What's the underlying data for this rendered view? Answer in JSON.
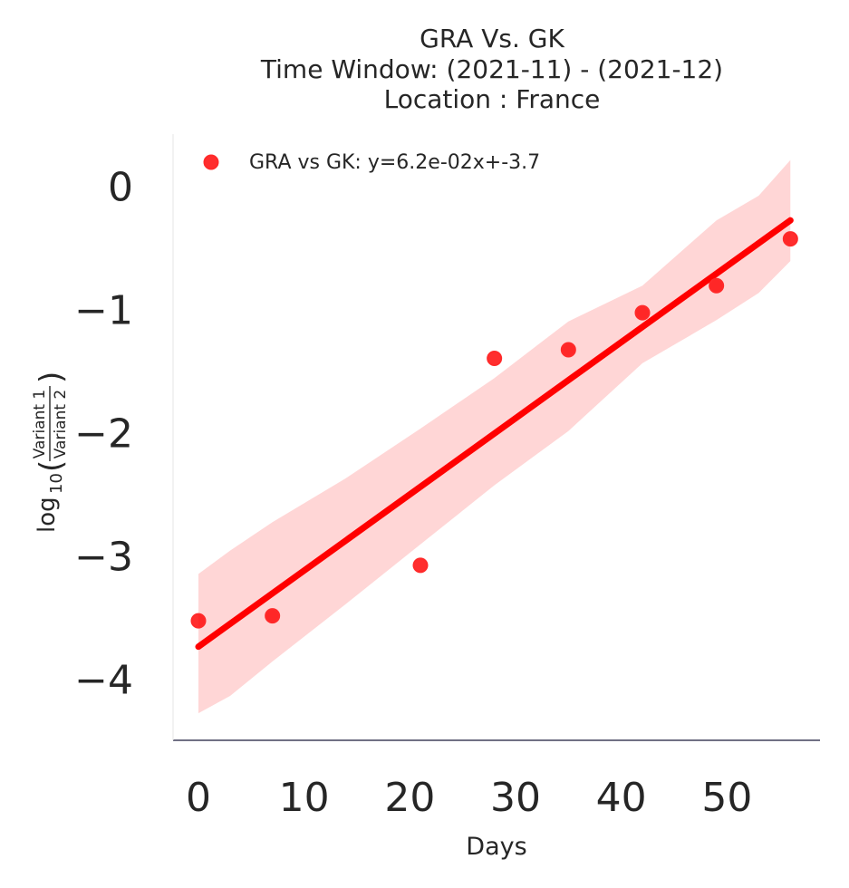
{
  "chart_data": {
    "type": "scatter",
    "title_lines": [
      "GRA Vs. GK",
      "Time Window: (2021-11) - (2021-12)",
      "Location : France"
    ],
    "xlabel": "Days",
    "ylabel": {
      "prefix": "log",
      "subscript": "10",
      "numerator": "Variant 1",
      "denominator": "Variant 2"
    },
    "xlim": [
      -2.4,
      58.8
    ],
    "ylim": [
      -4.49,
      0.43
    ],
    "xticks": [
      0,
      10,
      20,
      30,
      40,
      50
    ],
    "yticks": [
      0,
      -1,
      -2,
      -3,
      -4
    ],
    "xtick_labels": [
      "0",
      "10",
      "20",
      "30",
      "40",
      "50"
    ],
    "ytick_labels": [
      "0",
      "−1",
      "−2",
      "−3",
      "−4"
    ],
    "grid": false,
    "legend_position": "upper-left",
    "series": [
      {
        "name": "GRA vs GK: y=6.2e-02x+-3.7",
        "color": "#ff0000",
        "points": [
          {
            "x": 0,
            "y": -3.52
          },
          {
            "x": 7,
            "y": -3.48
          },
          {
            "x": 21,
            "y": -3.07
          },
          {
            "x": 28,
            "y": -1.39
          },
          {
            "x": 35,
            "y": -1.32
          },
          {
            "x": 42,
            "y": -1.02
          },
          {
            "x": 49,
            "y": -0.8
          },
          {
            "x": 56,
            "y": -0.42
          }
        ],
        "fit": {
          "x": [
            0,
            56
          ],
          "y": [
            -3.73,
            -0.27
          ]
        },
        "ci_band": {
          "x": [
            0,
            3,
            7,
            14,
            21,
            28,
            35,
            42,
            49,
            53,
            56
          ],
          "upper": [
            -3.14,
            -2.95,
            -2.72,
            -2.36,
            -1.96,
            -1.55,
            -1.09,
            -0.8,
            -0.27,
            -0.07,
            0.22
          ],
          "lower": [
            -4.27,
            -4.13,
            -3.85,
            -3.38,
            -2.9,
            -2.42,
            -1.98,
            -1.43,
            -1.08,
            -0.86,
            -0.6
          ]
        }
      }
    ]
  }
}
